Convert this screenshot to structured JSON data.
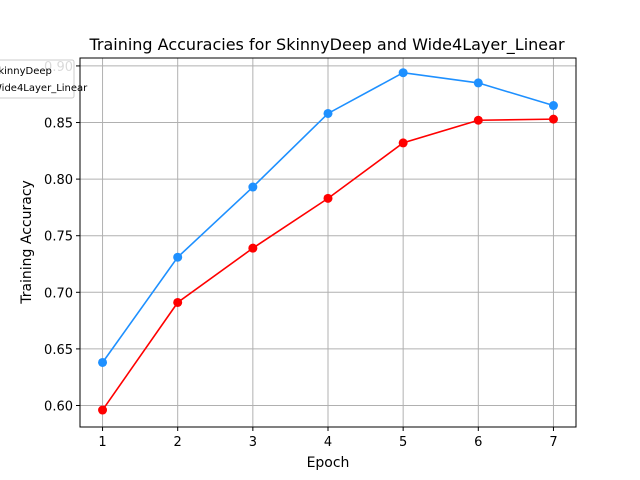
{
  "chart_data": {
    "type": "line",
    "title": "Training Accuracies for SkinnyDeep and Wide4Layer_Linear",
    "xlabel": "Epoch",
    "ylabel": "Training Accuracy",
    "x": [
      1,
      2,
      3,
      4,
      5,
      6,
      7
    ],
    "xticks": [
      "1",
      "2",
      "3",
      "4",
      "5",
      "6",
      "7"
    ],
    "yticks": [
      "0.60",
      "0.65",
      "0.70",
      "0.75",
      "0.80",
      "0.85",
      "0.90"
    ],
    "xlim": [
      0.7,
      7.3
    ],
    "ylim": [
      0.581,
      0.907
    ],
    "grid": true,
    "legend_position": "top-left, partially cut off",
    "series": [
      {
        "name": "SkinnyDeep",
        "color": "#1e90ff",
        "values": [
          0.638,
          0.731,
          0.793,
          0.858,
          0.894,
          0.885,
          0.865
        ]
      },
      {
        "name": "Wide4Layer_Linear",
        "color": "#ff0000",
        "values": [
          0.596,
          0.691,
          0.739,
          0.783,
          0.832,
          0.852,
          0.853
        ]
      }
    ]
  }
}
